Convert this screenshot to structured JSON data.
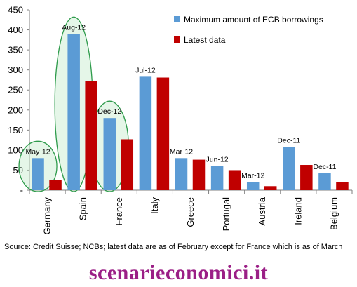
{
  "chart_data": {
    "type": "bar",
    "categories": [
      "Germany",
      "Spain",
      "France",
      "Italy",
      "Greece",
      "Portugal",
      "Austria",
      "Ireland",
      "Belgium"
    ],
    "series": [
      {
        "name": "Maximum amount of ECB borrowings",
        "color": "#5b9bd5",
        "values": [
          80,
          390,
          180,
          283,
          80,
          60,
          20,
          108,
          42
        ],
        "labels": [
          "May-12",
          "Aug-12",
          "Dec-12",
          "Jul-12",
          "Mar-12",
          "Jun-12",
          "Mar-12",
          "Dec-11",
          "Dec-11"
        ]
      },
      {
        "name": "Latest data",
        "color": "#c00000",
        "values": [
          25,
          273,
          127,
          281,
          76,
          50,
          10,
          63,
          20
        ]
      }
    ],
    "ylim": [
      0,
      450
    ],
    "yticks": [
      "-",
      "50",
      "100",
      "150",
      "200",
      "250",
      "300",
      "350",
      "400",
      "450"
    ],
    "legend_position": "top-right",
    "highlight_color": "#2e9b4b",
    "highlighted_categories": [
      "Germany",
      "Spain",
      "France"
    ]
  },
  "footer": {
    "source": "Source: Credit Suisse; NCBs; latest data are as of February except for France which is as of March"
  },
  "watermark": "scenarieconomici.it"
}
